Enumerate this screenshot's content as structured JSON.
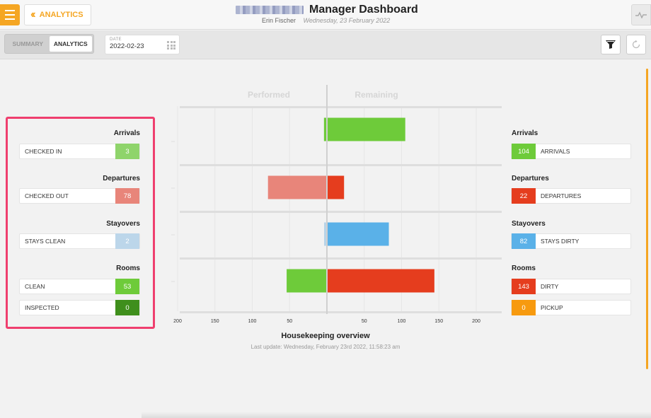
{
  "header": {
    "back_label": "ANALYTICS",
    "title": "Manager Dashboard",
    "user": "Erin Fischer",
    "date": "Wednesday, 23 February 2022"
  },
  "toolbar": {
    "tabs": [
      {
        "label": "SUMMARY",
        "active": false
      },
      {
        "label": "ANALYTICS",
        "active": true
      }
    ],
    "date_label": "DATE",
    "date_value": "2022-02-23"
  },
  "left": {
    "arrivals": {
      "title": "Arrivals",
      "label": "CHECKED IN",
      "value": "3"
    },
    "departures": {
      "title": "Departures",
      "label": "CHECKED OUT",
      "value": "78"
    },
    "stayovers": {
      "title": "Stayovers",
      "label": "STAYS CLEAN",
      "value": "2"
    },
    "rooms": {
      "title": "Rooms",
      "clean_label": "CLEAN",
      "clean_value": "53",
      "inspected_label": "INSPECTED",
      "inspected_value": "0"
    }
  },
  "right": {
    "arrivals": {
      "title": "Arrivals",
      "label": "ARRIVALS",
      "value": "104"
    },
    "departures": {
      "title": "Departures",
      "label": "DEPARTURES",
      "value": "22"
    },
    "stayovers": {
      "title": "Stayovers",
      "label": "STAYS DIRTY",
      "value": "82"
    },
    "rooms": {
      "title": "Rooms",
      "dirty_label": "DIRTY",
      "dirty_value": "143",
      "pickup_label": "PICKUP",
      "pickup_value": "0"
    }
  },
  "colors": {
    "green": "#6ecb3a",
    "dark_green": "#3f8f1c",
    "red": "#e53d1e",
    "light_red": "#e8857a",
    "light_blue": "#b8d4e8",
    "blue": "#5ab1e8",
    "orange": "#f79a0f",
    "accent": "#f5a623"
  },
  "chart_data": {
    "type": "bar",
    "title": "Housekeeping overview",
    "subtitle": "Last update: Wednesday, February 23rd 2022, 11:58:23 am",
    "column_labels": [
      "Performed",
      "Remaining"
    ],
    "x_ticks": [
      "200",
      "150",
      "100",
      "50",
      "",
      "50",
      "100",
      "150",
      "200"
    ],
    "xlim": [
      -200,
      200
    ],
    "rows": [
      {
        "performed": 3,
        "remaining": 104,
        "performed_color": "#6ecb3a",
        "remaining_color": "#6ecb3a"
      },
      {
        "performed": 78,
        "remaining": 22,
        "performed_color": "#e8857a",
        "remaining_color": "#e53d1e"
      },
      {
        "performed": 2,
        "remaining": 82,
        "performed_color": "#b8d4e8",
        "remaining_color": "#5ab1e8"
      },
      {
        "performed": 53,
        "remaining": 143,
        "performed_color": "#6ecb3a",
        "remaining_color": "#e53d1e"
      }
    ]
  }
}
